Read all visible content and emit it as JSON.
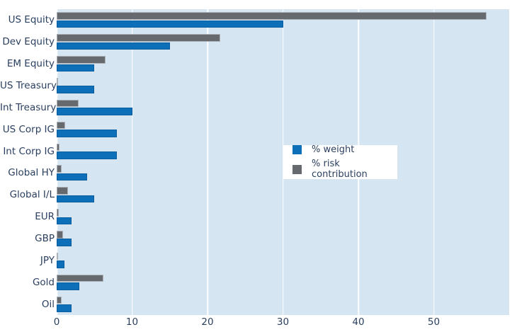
{
  "figure": {
    "background": "#ffffff",
    "plot_background": "#d5e5f2",
    "grid_color": "#ffffff",
    "text_color": "#2a3f5f"
  },
  "legend": {
    "weight_label": "% weight",
    "risk_label": "% risk contribution",
    "weight_swatch_icon": "blue-square-icon",
    "risk_swatch_icon": "gray-square-icon"
  },
  "chart_data": {
    "type": "bar",
    "orientation": "horizontal",
    "title": "",
    "xlabel": "",
    "ylabel": "",
    "grid": true,
    "legend_position": "middle-right",
    "xlim": [
      0,
      60
    ],
    "xticks": [
      0,
      10,
      20,
      30,
      40,
      50
    ],
    "categories": [
      "US Equity",
      "Dev Equity",
      "EM Equity",
      "US Treasury",
      "Int Treasury",
      "US Corp IG",
      "Int Corp IG",
      "Global HY",
      "Global I/L",
      "EUR",
      "GBP",
      "JPY",
      "Gold",
      "Oil"
    ],
    "series": [
      {
        "name": "% weight",
        "color": "#0d6fb8",
        "values": [
          30,
          15,
          5,
          5,
          10,
          8,
          8,
          4,
          5,
          2,
          2,
          1,
          3,
          2
        ]
      },
      {
        "name": "% risk contribution",
        "color": "#66696d",
        "values": [
          57,
          21.7,
          6.5,
          0.15,
          2.9,
          1.1,
          0.4,
          0.7,
          1.5,
          0.25,
          0.8,
          0.1,
          6.2,
          0.65
        ]
      }
    ]
  }
}
